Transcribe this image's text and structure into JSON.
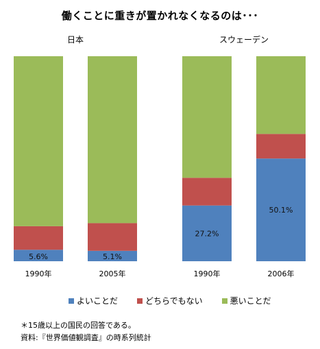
{
  "chart_data": {
    "type": "bar",
    "title": "働くことに重きが置かれなくなるのは･･･",
    "panels": [
      {
        "name": "日本",
        "categories": [
          "1990年",
          "2005年"
        ]
      },
      {
        "name": "スウェーデン",
        "categories": [
          "1990年",
          "2006年"
        ]
      }
    ],
    "categories": [
      "1990年",
      "2005年",
      "1990年",
      "2006年"
    ],
    "series": [
      {
        "name": "よいことだ",
        "color": "#4f81bd",
        "values": [
          5.6,
          5.1,
          27.2,
          50.1
        ]
      },
      {
        "name": "どちらでもない",
        "color": "#c0504d",
        "values": [
          11.5,
          13.5,
          13.5,
          12.0
        ]
      },
      {
        "name": "悪いことだ",
        "color": "#9bbb59",
        "values": [
          82.9,
          81.4,
          59.3,
          37.9
        ]
      }
    ],
    "data_labels": [
      "5.6%",
      "5.1%",
      "27.2%",
      "50.1%"
    ],
    "stacked": true,
    "ylim": [
      0,
      100
    ],
    "grid": false,
    "legend_position": "bottom"
  },
  "notes": [
    "＊15歳以上の国民の回答である。",
    "資料:『世界価値観調査』の時系列統計"
  ]
}
